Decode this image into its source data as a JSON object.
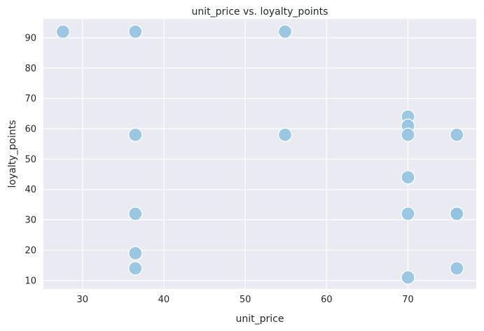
{
  "chart_data": {
    "type": "scatter",
    "title": "unit_price vs. loyalty_points",
    "xlabel": "unit_price",
    "ylabel": "loyalty_points",
    "xlim": [
      25.2,
      78.4
    ],
    "ylim": [
      7.2,
      96.2
    ],
    "xticks": [
      30,
      40,
      50,
      60,
      70
    ],
    "yticks": [
      10,
      20,
      30,
      40,
      50,
      60,
      70,
      80,
      90
    ],
    "grid": true,
    "point_color": "#93c3e1",
    "background": "#eaeaf2",
    "points": [
      {
        "x": 27.6,
        "y": 92
      },
      {
        "x": 36.5,
        "y": 92
      },
      {
        "x": 54.9,
        "y": 92
      },
      {
        "x": 36.5,
        "y": 58
      },
      {
        "x": 36.5,
        "y": 32
      },
      {
        "x": 36.5,
        "y": 19
      },
      {
        "x": 36.5,
        "y": 14
      },
      {
        "x": 54.9,
        "y": 58
      },
      {
        "x": 70.0,
        "y": 64
      },
      {
        "x": 70.0,
        "y": 61
      },
      {
        "x": 70.0,
        "y": 58
      },
      {
        "x": 70.0,
        "y": 44
      },
      {
        "x": 70.0,
        "y": 32
      },
      {
        "x": 70.0,
        "y": 11
      },
      {
        "x": 76.0,
        "y": 58
      },
      {
        "x": 76.0,
        "y": 32
      },
      {
        "x": 76.0,
        "y": 32
      },
      {
        "x": 76.0,
        "y": 14
      }
    ]
  }
}
